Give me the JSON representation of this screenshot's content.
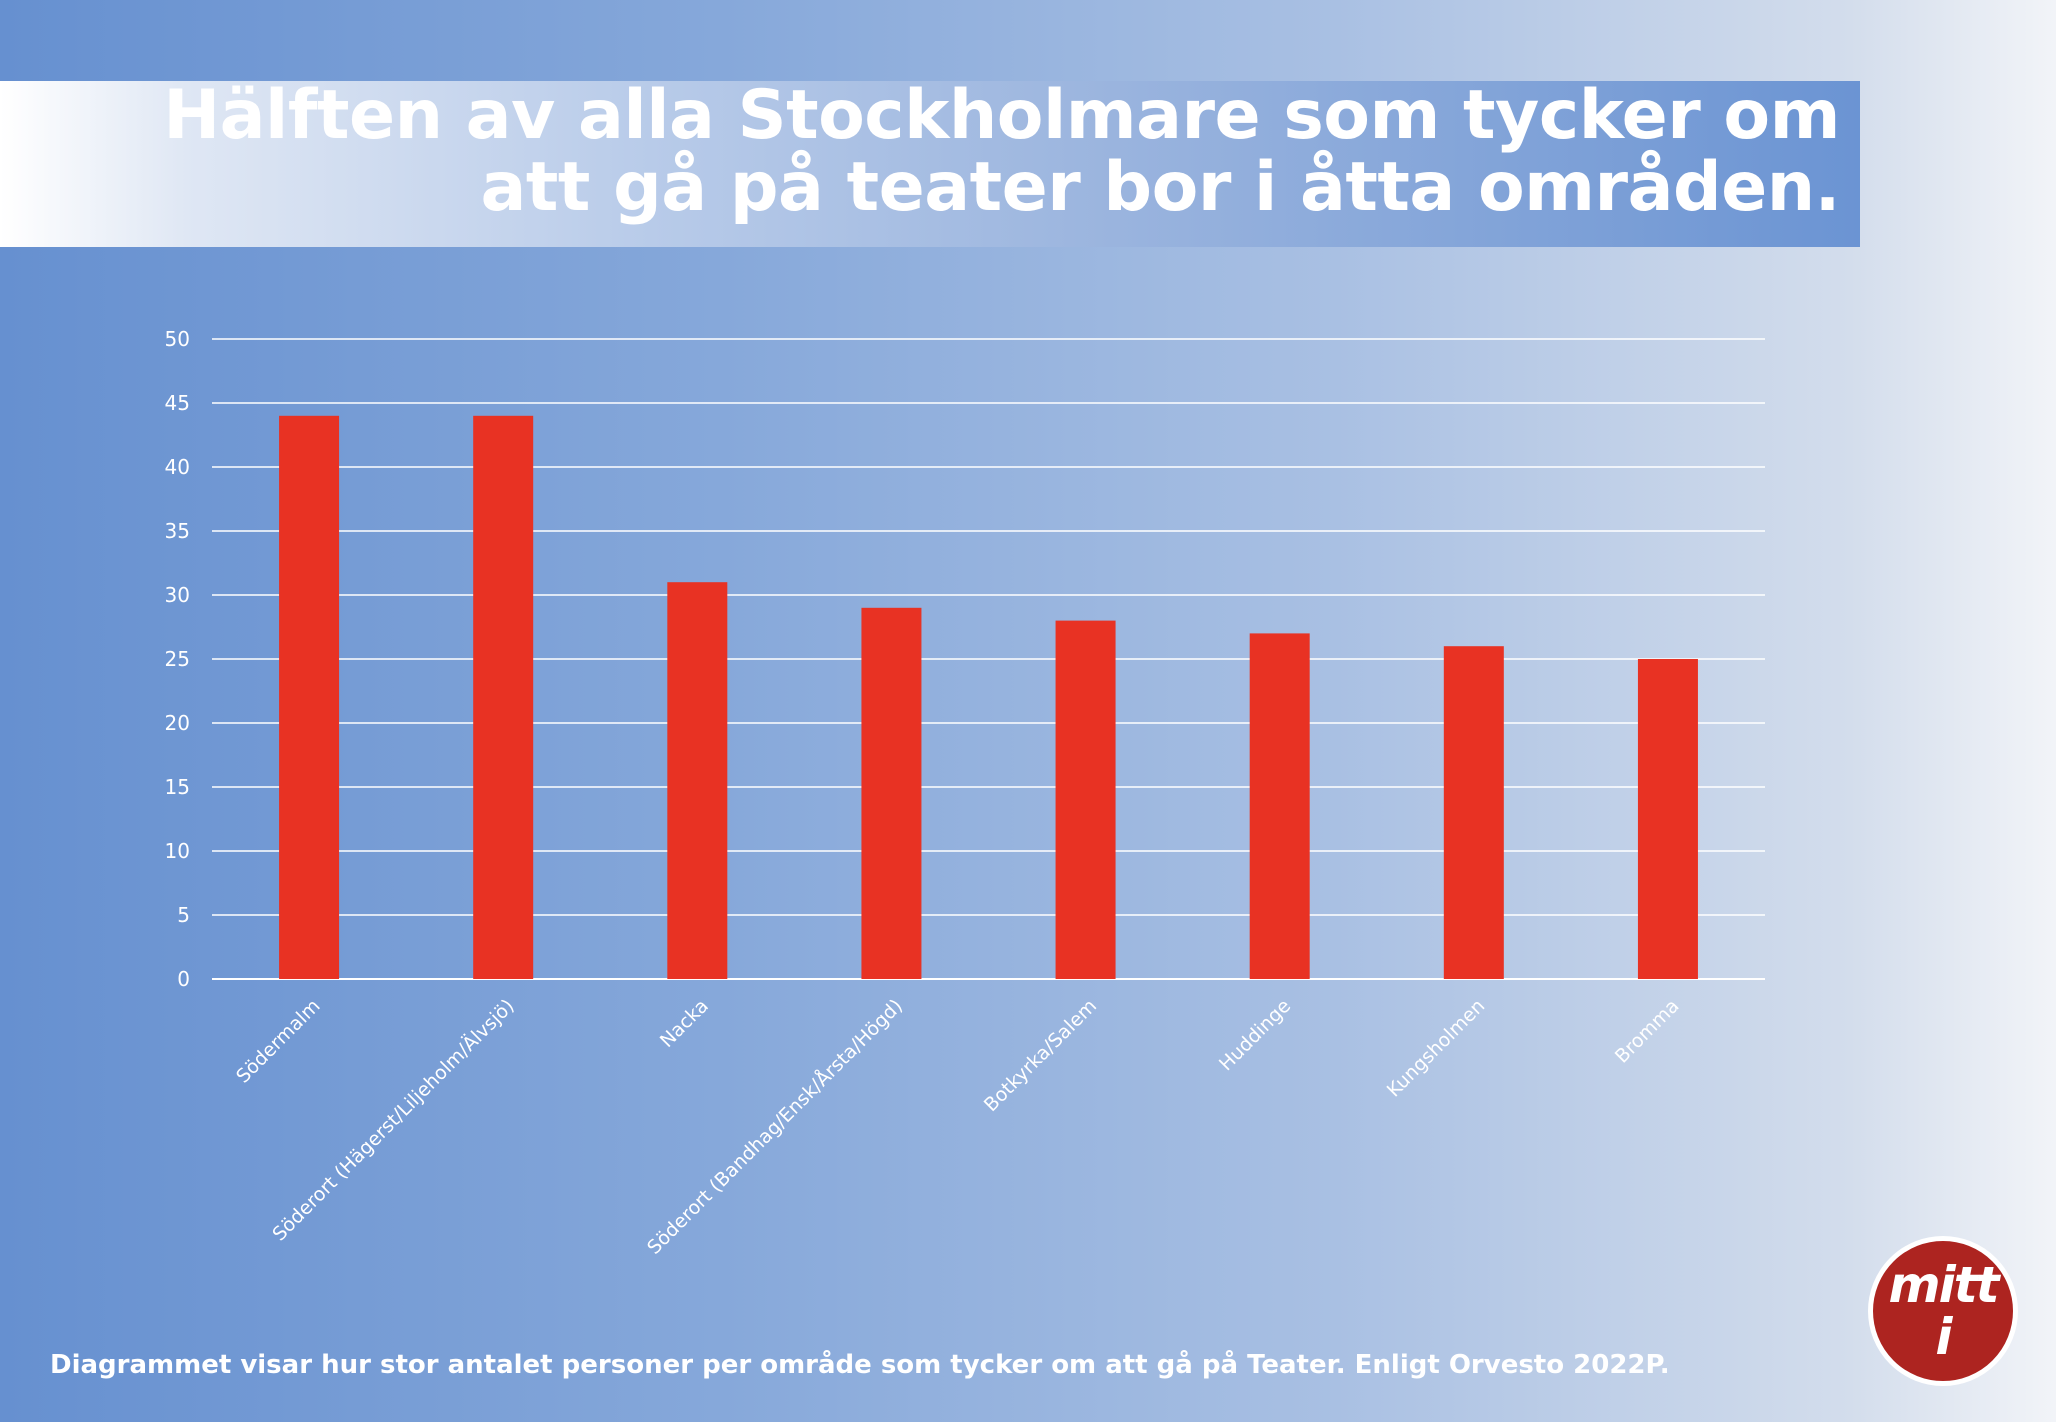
{
  "title": "Hälften av alla Stockholmare som tycker om att gå på teater bor i åtta områden.",
  "caption": "Diagrammet visar hur stor antalet personer per område som tycker om att gå på Teater. Enligt Orvesto 2022P.",
  "logo": {
    "text": "mitt i"
  },
  "colors": {
    "bar": "#e83223",
    "grid": "#ffffff",
    "logo_bg": "#ad2420"
  },
  "chart_data": {
    "type": "bar",
    "title": "Hälften av alla Stockholmare som tycker om att gå på teater bor i åtta områden.",
    "categories": [
      "Södermalm",
      "Söderort (Hägerst/Liljeholm/Älvsjö)",
      "Nacka",
      "Söderort (Bandhag/Ensk/Årsta/Högd)",
      "Botkyrka/Salem",
      "Huddinge",
      "Kungsholmen",
      "Bromma"
    ],
    "values": [
      44,
      44,
      31,
      29,
      28,
      27,
      26,
      25
    ],
    "xlabel": "",
    "ylabel": "",
    "ylim": [
      0,
      50
    ],
    "yticks": [
      0,
      5,
      10,
      15,
      20,
      25,
      30,
      35,
      40,
      45,
      50
    ],
    "grid": true,
    "legend": "none"
  }
}
